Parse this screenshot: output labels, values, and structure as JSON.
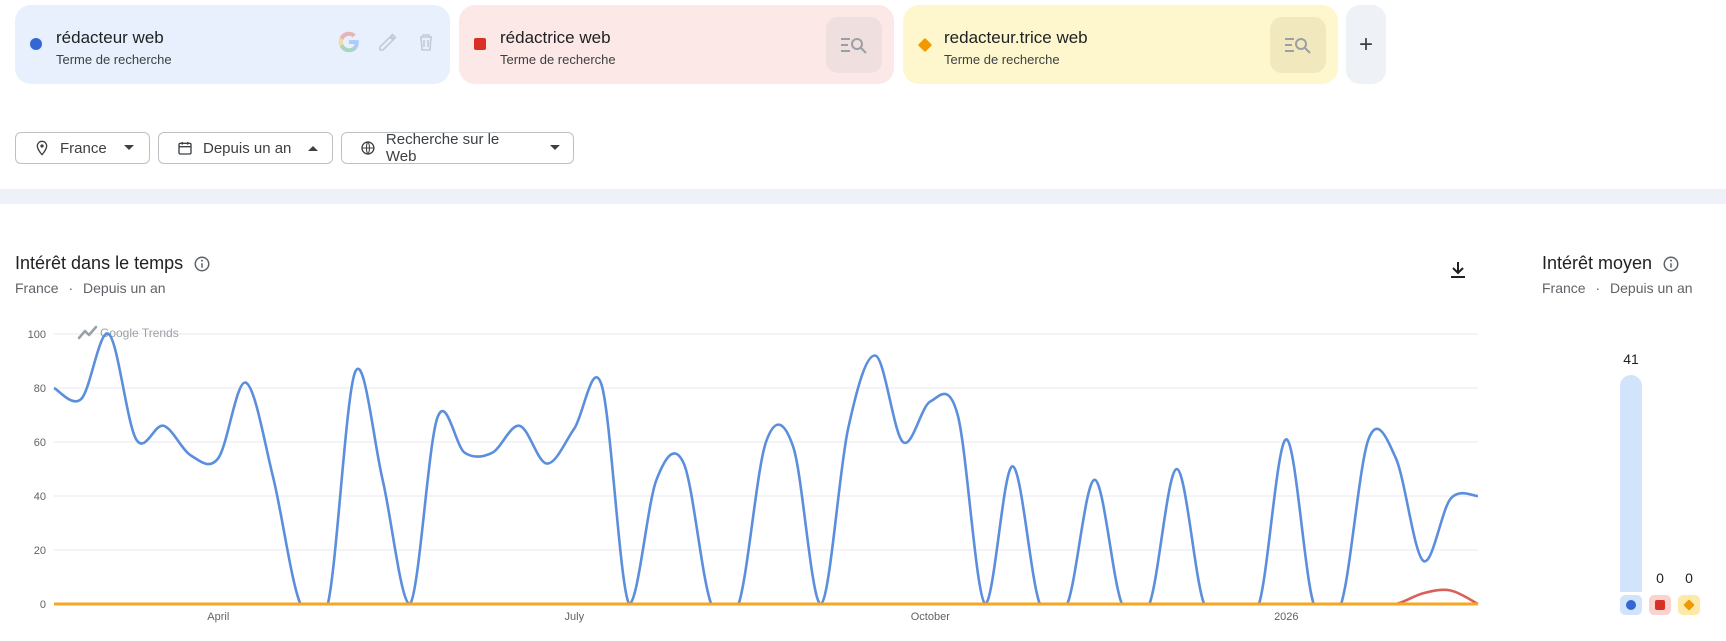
{
  "terms": [
    {
      "title": "rédacteur web",
      "subtitle": "Terme de recherche",
      "color": "#3367d6",
      "bg": "#e8f0fe",
      "marker": "dot"
    },
    {
      "title": "rédactrice web",
      "subtitle": "Terme de recherche",
      "color": "#d93025",
      "bg": "#fce8e6",
      "marker": "square"
    },
    {
      "title": "redacteur.trice web",
      "subtitle": "Terme de recherche",
      "color": "#f29900",
      "bg": "#fef7cd",
      "marker": "diamond"
    }
  ],
  "add_button_label": "+",
  "filters": {
    "region": "France",
    "period": "Depuis un an",
    "search_type": "Recherche sur le Web"
  },
  "interest_over_time": {
    "title": "Intérêt dans le temps",
    "subtitle_region": "France",
    "subtitle_sep": "·",
    "subtitle_period": "Depuis un an",
    "watermark": "Google Trends"
  },
  "average_interest": {
    "title": "Intérêt moyen",
    "subtitle_region": "France",
    "subtitle_sep": "·",
    "subtitle_period": "Depuis un an",
    "values": [
      41,
      0,
      0
    ],
    "value_labels": [
      "41",
      "0",
      "0"
    ]
  },
  "chart_data": {
    "type": "line",
    "title": "Intérêt dans le temps",
    "ylim": [
      0,
      100
    ],
    "yticks": [
      "100",
      "80",
      "60",
      "40",
      "20",
      "0"
    ],
    "xticks": [
      {
        "label": "April",
        "at": 6
      },
      {
        "label": "July",
        "at": 19
      },
      {
        "label": "October",
        "at": 32
      },
      {
        "label": "2026",
        "at": 45
      }
    ],
    "grid": true,
    "series": [
      {
        "name": "rédacteur web",
        "color": "#5b8edc",
        "values": [
          80,
          76,
          100,
          61,
          66,
          55,
          54,
          82,
          47,
          0,
          0,
          86,
          46,
          0,
          69,
          56,
          56,
          66,
          52,
          65,
          81,
          0,
          46,
          52,
          0,
          0,
          60,
          58,
          0,
          65,
          92,
          60,
          75,
          70,
          0,
          51,
          0,
          0,
          46,
          0,
          0,
          50,
          0,
          0,
          0,
          61,
          0,
          0,
          61,
          54,
          16,
          39,
          40
        ]
      },
      {
        "name": "rédactrice web",
        "color": "#d96159",
        "values": [
          0,
          0,
          0,
          0,
          0,
          0,
          0,
          0,
          0,
          0,
          0,
          0,
          0,
          0,
          0,
          0,
          0,
          0,
          0,
          0,
          0,
          0,
          0,
          0,
          0,
          0,
          0,
          0,
          0,
          0,
          0,
          0,
          0,
          0,
          0,
          0,
          0,
          0,
          0,
          0,
          0,
          0,
          0,
          0,
          0,
          0,
          0,
          0,
          0,
          0,
          4,
          5,
          0
        ]
      },
      {
        "name": "redacteur.trice web",
        "color": "#f5a623",
        "values": [
          0,
          0,
          0,
          0,
          0,
          0,
          0,
          0,
          0,
          0,
          0,
          0,
          0,
          0,
          0,
          0,
          0,
          0,
          0,
          0,
          0,
          0,
          0,
          0,
          0,
          0,
          0,
          0,
          0,
          0,
          0,
          0,
          0,
          0,
          0,
          0,
          0,
          0,
          0,
          0,
          0,
          0,
          0,
          0,
          0,
          0,
          0,
          0,
          0,
          0,
          0,
          0,
          0
        ]
      }
    ]
  }
}
